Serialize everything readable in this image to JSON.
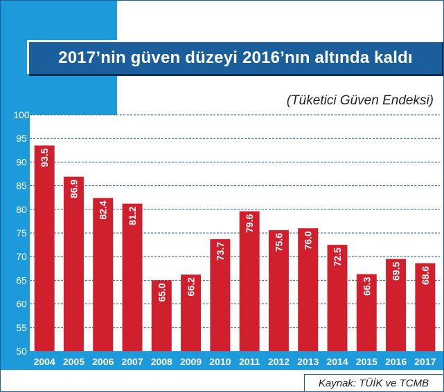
{
  "title": "2017’nin güven düzeyi 2016’nın altında kaldı",
  "subtitle": "(Tüketici Güven Endeksi)",
  "source": "Kaynak: TÜİK ve TCMB",
  "colors": {
    "bar": "#d1202d",
    "accent_blue": "#1d9ad9",
    "title_blue": "#1b5e9c",
    "grid": "#1d5f99"
  },
  "chart_data": {
    "type": "bar",
    "title": "2017’nin güven düzeyi 2016’nın altında kaldı",
    "subtitle": "(Tüketici Güven Endeksi)",
    "categories": [
      "2004",
      "2005",
      "2006",
      "2007",
      "2008",
      "2009",
      "2010",
      "2011",
      "2012",
      "2013",
      "2014",
      "2015",
      "2016",
      "2017"
    ],
    "values": [
      93.5,
      86.9,
      82.4,
      81.2,
      65.0,
      66.2,
      73.7,
      79.6,
      75.6,
      76.0,
      72.5,
      66.3,
      69.5,
      68.6
    ],
    "value_labels": [
      "93.5",
      "86.9",
      "82.4",
      "81.2",
      "65.0",
      "66.2",
      "73.7",
      "79.6",
      "75.6",
      "76.0",
      "72.5",
      "66.3",
      "69.5",
      "68.6"
    ],
    "yticks": [
      50,
      55,
      60,
      65,
      70,
      75,
      80,
      85,
      90,
      95,
      100
    ],
    "ylim": [
      50,
      100
    ],
    "grid": true,
    "xlabel": "",
    "ylabel": ""
  }
}
